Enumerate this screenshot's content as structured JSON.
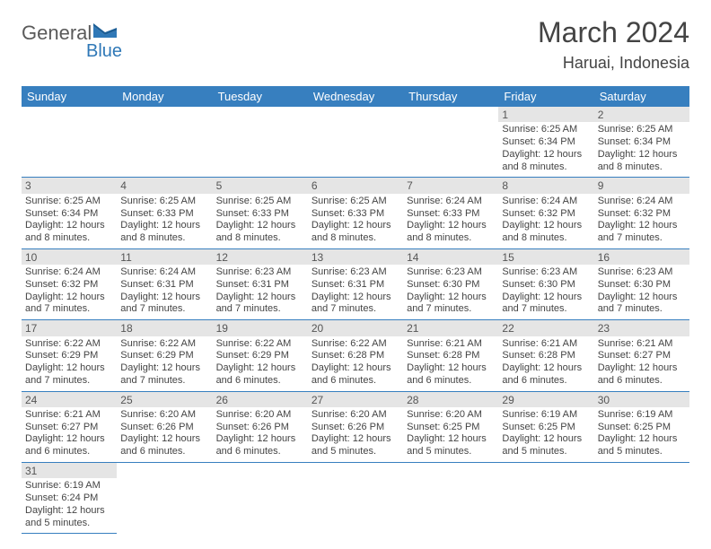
{
  "logo": {
    "word1": "General",
    "word2": "Blue",
    "brand_color": "#2f78b7"
  },
  "title": "March 2024",
  "location": "Haruai, Indonesia",
  "colors": {
    "header_bg": "#377fbf",
    "header_text": "#ffffff",
    "daynum_bg": "#e5e5e5",
    "daynum_text": "#555555",
    "body_text": "#444444",
    "row_border": "#377fbf",
    "page_bg": "#ffffff"
  },
  "weekdays": [
    "Sunday",
    "Monday",
    "Tuesday",
    "Wednesday",
    "Thursday",
    "Friday",
    "Saturday"
  ],
  "weeks": [
    [
      {
        "blank": true
      },
      {
        "blank": true
      },
      {
        "blank": true
      },
      {
        "blank": true
      },
      {
        "blank": true
      },
      {
        "day": "1",
        "sunrise": "Sunrise: 6:25 AM",
        "sunset": "Sunset: 6:34 PM",
        "daylight": "Daylight: 12 hours and 8 minutes."
      },
      {
        "day": "2",
        "sunrise": "Sunrise: 6:25 AM",
        "sunset": "Sunset: 6:34 PM",
        "daylight": "Daylight: 12 hours and 8 minutes."
      }
    ],
    [
      {
        "day": "3",
        "sunrise": "Sunrise: 6:25 AM",
        "sunset": "Sunset: 6:34 PM",
        "daylight": "Daylight: 12 hours and 8 minutes."
      },
      {
        "day": "4",
        "sunrise": "Sunrise: 6:25 AM",
        "sunset": "Sunset: 6:33 PM",
        "daylight": "Daylight: 12 hours and 8 minutes."
      },
      {
        "day": "5",
        "sunrise": "Sunrise: 6:25 AM",
        "sunset": "Sunset: 6:33 PM",
        "daylight": "Daylight: 12 hours and 8 minutes."
      },
      {
        "day": "6",
        "sunrise": "Sunrise: 6:25 AM",
        "sunset": "Sunset: 6:33 PM",
        "daylight": "Daylight: 12 hours and 8 minutes."
      },
      {
        "day": "7",
        "sunrise": "Sunrise: 6:24 AM",
        "sunset": "Sunset: 6:33 PM",
        "daylight": "Daylight: 12 hours and 8 minutes."
      },
      {
        "day": "8",
        "sunrise": "Sunrise: 6:24 AM",
        "sunset": "Sunset: 6:32 PM",
        "daylight": "Daylight: 12 hours and 8 minutes."
      },
      {
        "day": "9",
        "sunrise": "Sunrise: 6:24 AM",
        "sunset": "Sunset: 6:32 PM",
        "daylight": "Daylight: 12 hours and 7 minutes."
      }
    ],
    [
      {
        "day": "10",
        "sunrise": "Sunrise: 6:24 AM",
        "sunset": "Sunset: 6:32 PM",
        "daylight": "Daylight: 12 hours and 7 minutes."
      },
      {
        "day": "11",
        "sunrise": "Sunrise: 6:24 AM",
        "sunset": "Sunset: 6:31 PM",
        "daylight": "Daylight: 12 hours and 7 minutes."
      },
      {
        "day": "12",
        "sunrise": "Sunrise: 6:23 AM",
        "sunset": "Sunset: 6:31 PM",
        "daylight": "Daylight: 12 hours and 7 minutes."
      },
      {
        "day": "13",
        "sunrise": "Sunrise: 6:23 AM",
        "sunset": "Sunset: 6:31 PM",
        "daylight": "Daylight: 12 hours and 7 minutes."
      },
      {
        "day": "14",
        "sunrise": "Sunrise: 6:23 AM",
        "sunset": "Sunset: 6:30 PM",
        "daylight": "Daylight: 12 hours and 7 minutes."
      },
      {
        "day": "15",
        "sunrise": "Sunrise: 6:23 AM",
        "sunset": "Sunset: 6:30 PM",
        "daylight": "Daylight: 12 hours and 7 minutes."
      },
      {
        "day": "16",
        "sunrise": "Sunrise: 6:23 AM",
        "sunset": "Sunset: 6:30 PM",
        "daylight": "Daylight: 12 hours and 7 minutes."
      }
    ],
    [
      {
        "day": "17",
        "sunrise": "Sunrise: 6:22 AM",
        "sunset": "Sunset: 6:29 PM",
        "daylight": "Daylight: 12 hours and 7 minutes."
      },
      {
        "day": "18",
        "sunrise": "Sunrise: 6:22 AM",
        "sunset": "Sunset: 6:29 PM",
        "daylight": "Daylight: 12 hours and 7 minutes."
      },
      {
        "day": "19",
        "sunrise": "Sunrise: 6:22 AM",
        "sunset": "Sunset: 6:29 PM",
        "daylight": "Daylight: 12 hours and 6 minutes."
      },
      {
        "day": "20",
        "sunrise": "Sunrise: 6:22 AM",
        "sunset": "Sunset: 6:28 PM",
        "daylight": "Daylight: 12 hours and 6 minutes."
      },
      {
        "day": "21",
        "sunrise": "Sunrise: 6:21 AM",
        "sunset": "Sunset: 6:28 PM",
        "daylight": "Daylight: 12 hours and 6 minutes."
      },
      {
        "day": "22",
        "sunrise": "Sunrise: 6:21 AM",
        "sunset": "Sunset: 6:28 PM",
        "daylight": "Daylight: 12 hours and 6 minutes."
      },
      {
        "day": "23",
        "sunrise": "Sunrise: 6:21 AM",
        "sunset": "Sunset: 6:27 PM",
        "daylight": "Daylight: 12 hours and 6 minutes."
      }
    ],
    [
      {
        "day": "24",
        "sunrise": "Sunrise: 6:21 AM",
        "sunset": "Sunset: 6:27 PM",
        "daylight": "Daylight: 12 hours and 6 minutes."
      },
      {
        "day": "25",
        "sunrise": "Sunrise: 6:20 AM",
        "sunset": "Sunset: 6:26 PM",
        "daylight": "Daylight: 12 hours and 6 minutes."
      },
      {
        "day": "26",
        "sunrise": "Sunrise: 6:20 AM",
        "sunset": "Sunset: 6:26 PM",
        "daylight": "Daylight: 12 hours and 6 minutes."
      },
      {
        "day": "27",
        "sunrise": "Sunrise: 6:20 AM",
        "sunset": "Sunset: 6:26 PM",
        "daylight": "Daylight: 12 hours and 5 minutes."
      },
      {
        "day": "28",
        "sunrise": "Sunrise: 6:20 AM",
        "sunset": "Sunset: 6:25 PM",
        "daylight": "Daylight: 12 hours and 5 minutes."
      },
      {
        "day": "29",
        "sunrise": "Sunrise: 6:19 AM",
        "sunset": "Sunset: 6:25 PM",
        "daylight": "Daylight: 12 hours and 5 minutes."
      },
      {
        "day": "30",
        "sunrise": "Sunrise: 6:19 AM",
        "sunset": "Sunset: 6:25 PM",
        "daylight": "Daylight: 12 hours and 5 minutes."
      }
    ],
    [
      {
        "day": "31",
        "sunrise": "Sunrise: 6:19 AM",
        "sunset": "Sunset: 6:24 PM",
        "daylight": "Daylight: 12 hours and 5 minutes."
      },
      {
        "blank": true
      },
      {
        "blank": true
      },
      {
        "blank": true
      },
      {
        "blank": true
      },
      {
        "blank": true
      },
      {
        "blank": true
      }
    ]
  ]
}
